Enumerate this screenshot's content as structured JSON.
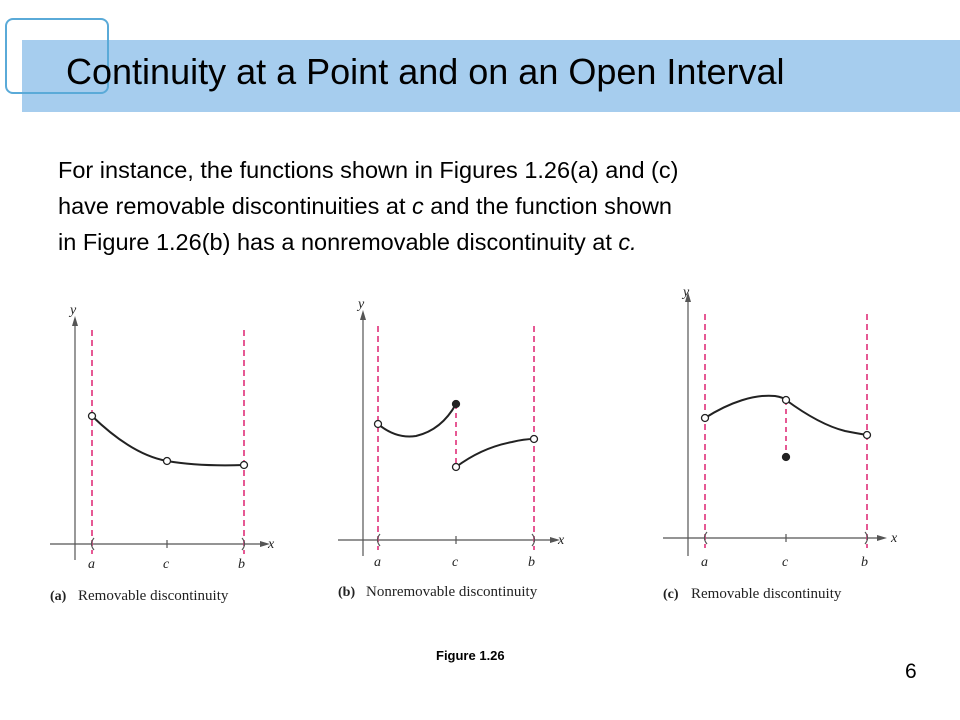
{
  "title": "Continuity at a Point and on an Open Interval",
  "body": {
    "p1": "For instance, the functions shown in Figures 1.26(a) and (c)",
    "p2a": "have removable discontinuities at ",
    "p2c": "c",
    "p2b": " and the function shown",
    "p3a": "in Figure 1.26(b) has a nonremovable discontinuity at ",
    "p3c": "c."
  },
  "panels": [
    {
      "letter": "(a)",
      "caption": "Removable discontinuity",
      "ylabel": "y",
      "xlabel": "x",
      "ticks": [
        "a",
        "c",
        "b"
      ]
    },
    {
      "letter": "(b)",
      "caption": "Nonremovable discontinuity",
      "ylabel": "y",
      "xlabel": "x",
      "ticks": [
        "a",
        "c",
        "b"
      ]
    },
    {
      "letter": "(c)",
      "caption": "Removable discontinuity",
      "ylabel": "y",
      "xlabel": "x",
      "ticks": [
        "a",
        "c",
        "b"
      ]
    }
  ],
  "figure_caption": "Figure 1.26",
  "page_number": "6",
  "colors": {
    "title_bar": "#a6cdee",
    "title_square_border": "#5aaad8",
    "dashed_line": "#e0307a",
    "curve": "#222222"
  }
}
